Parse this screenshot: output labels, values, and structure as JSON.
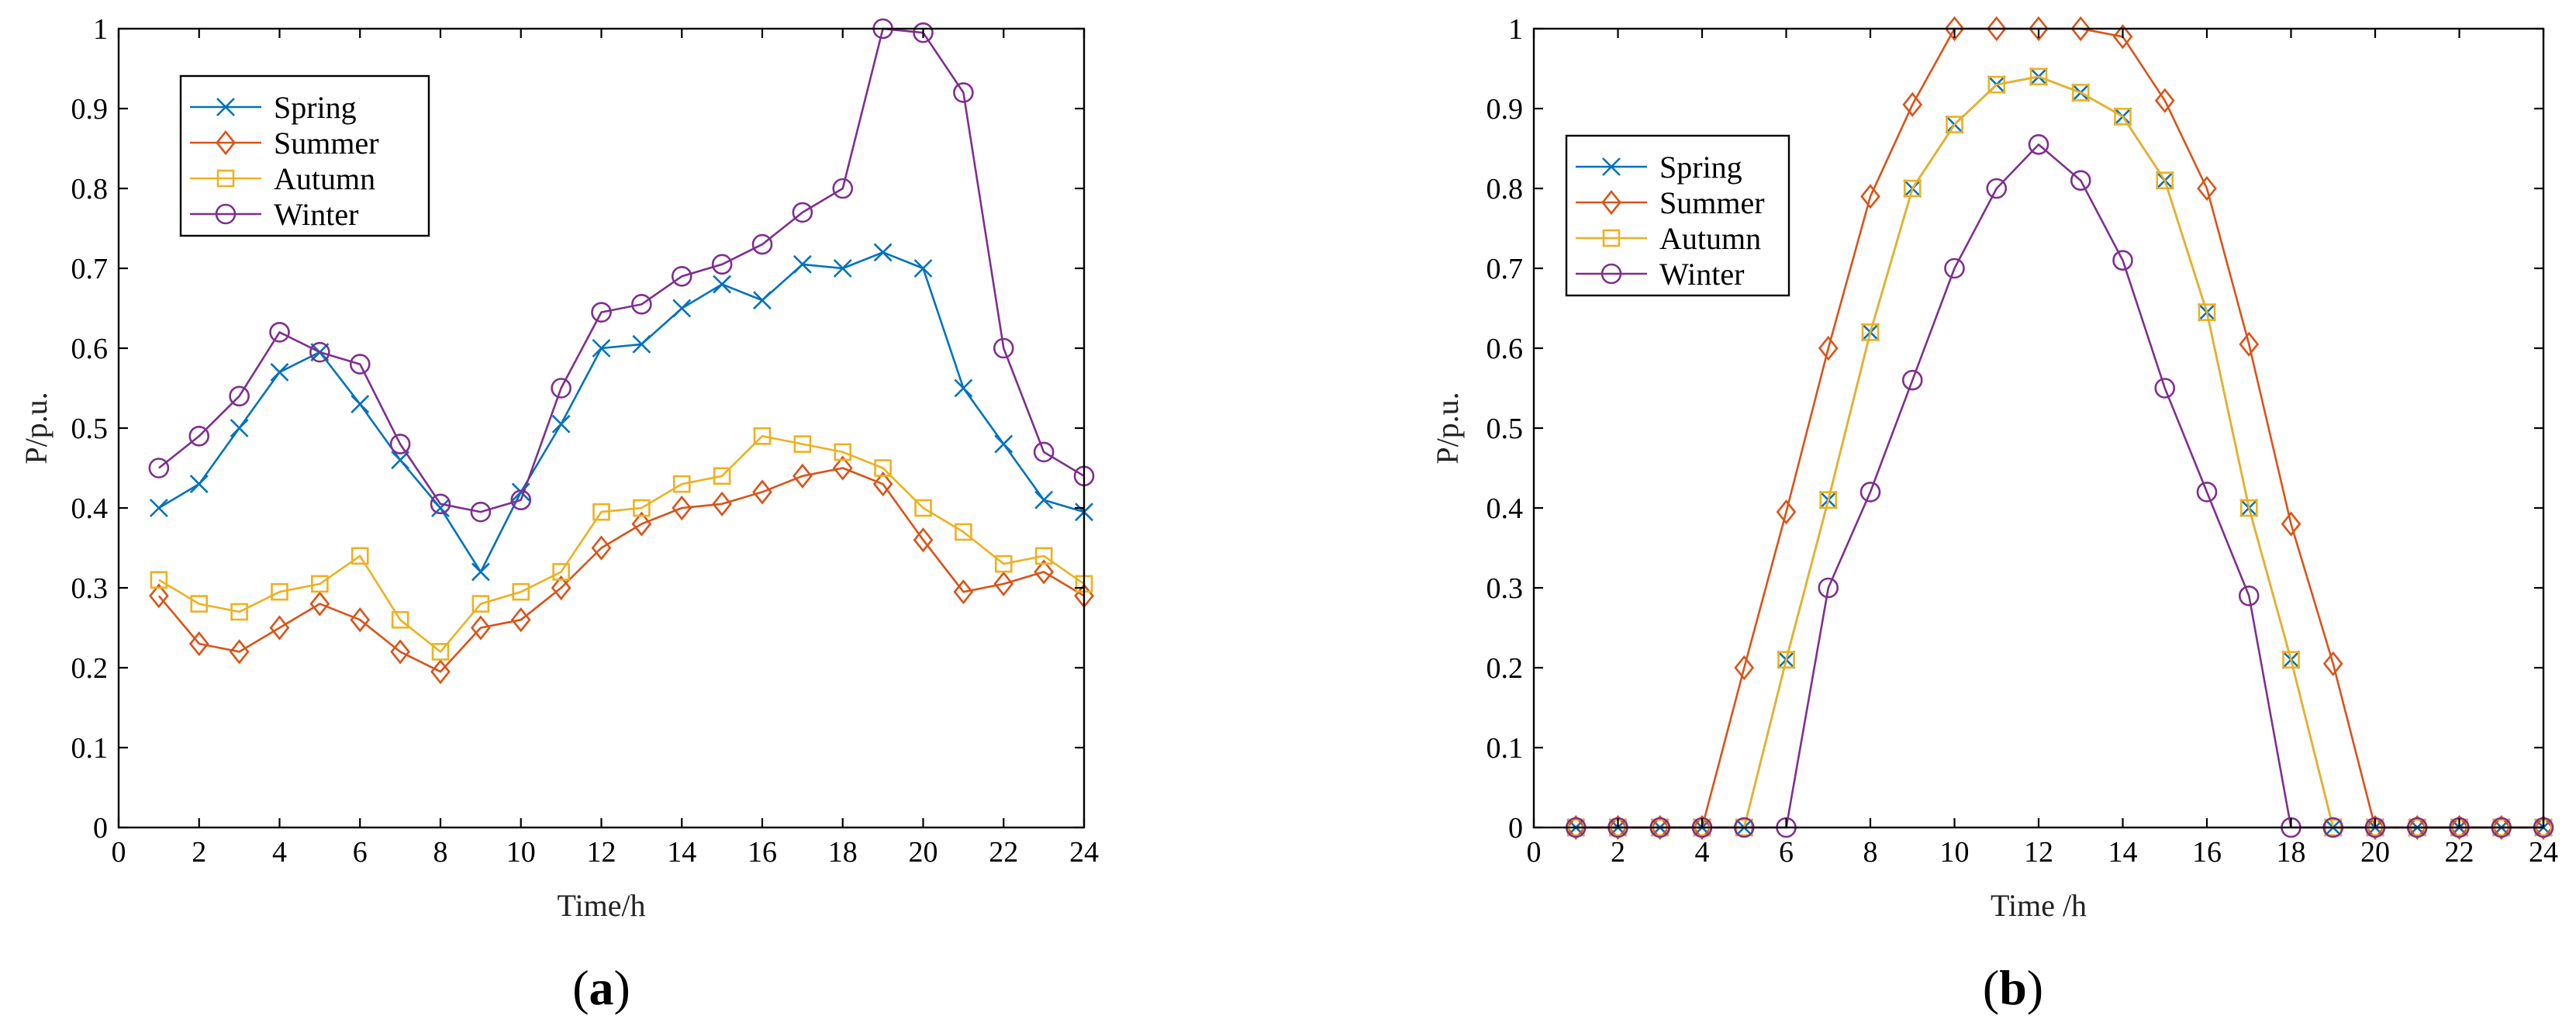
{
  "colors": {
    "Spring": "#0072BD",
    "Summer": "#D95319",
    "Autumn": "#EDB120",
    "Winter": "#7E2F8E"
  },
  "chart_data": [
    {
      "type": "line",
      "panel_label": "(a)",
      "panel_letter": "a",
      "xlabel": "Time/h",
      "ylabel": "P/p.u.",
      "xlim": [
        0,
        24
      ],
      "ylim": [
        0,
        1
      ],
      "xticks": [
        0,
        2,
        4,
        6,
        8,
        10,
        12,
        14,
        16,
        18,
        20,
        22,
        24
      ],
      "yticks": [
        0,
        0.1,
        0.2,
        0.3,
        0.4,
        0.5,
        0.6,
        0.7,
        0.8,
        0.9,
        1
      ],
      "grid": false,
      "legend_position": "top-left",
      "x": [
        1,
        2,
        3,
        4,
        5,
        6,
        7,
        8,
        9,
        10,
        11,
        12,
        13,
        14,
        15,
        16,
        17,
        18,
        19,
        20,
        21,
        22,
        23,
        24
      ],
      "series": [
        {
          "name": "Spring",
          "marker": "x",
          "values": [
            0.4,
            0.43,
            0.5,
            0.57,
            0.595,
            0.53,
            0.46,
            0.4,
            0.32,
            0.42,
            0.505,
            0.6,
            0.605,
            0.65,
            0.68,
            0.66,
            0.705,
            0.7,
            0.72,
            0.7,
            0.55,
            0.48,
            0.41,
            0.395
          ]
        },
        {
          "name": "Summer",
          "marker": "diamond",
          "values": [
            0.29,
            0.23,
            0.22,
            0.25,
            0.28,
            0.26,
            0.22,
            0.195,
            0.25,
            0.26,
            0.3,
            0.35,
            0.38,
            0.4,
            0.405,
            0.42,
            0.44,
            0.45,
            0.43,
            0.36,
            0.295,
            0.305,
            0.32,
            0.29
          ]
        },
        {
          "name": "Autumn",
          "marker": "square",
          "values": [
            0.31,
            0.28,
            0.27,
            0.295,
            0.305,
            0.34,
            0.26,
            0.22,
            0.28,
            0.295,
            0.32,
            0.395,
            0.4,
            0.43,
            0.44,
            0.49,
            0.48,
            0.47,
            0.45,
            0.4,
            0.37,
            0.33,
            0.34,
            0.305
          ]
        },
        {
          "name": "Winter",
          "marker": "circle",
          "values": [
            0.45,
            0.49,
            0.54,
            0.62,
            0.595,
            0.58,
            0.48,
            0.405,
            0.395,
            0.41,
            0.55,
            0.645,
            0.655,
            0.69,
            0.705,
            0.73,
            0.77,
            0.8,
            1.0,
            0.995,
            0.92,
            0.6,
            0.47,
            0.44
          ]
        }
      ]
    },
    {
      "type": "line",
      "panel_label": "(b)",
      "panel_letter": "b",
      "xlabel": "Time /h",
      "ylabel": "P/p.u.",
      "xlim": [
        0,
        24
      ],
      "ylim": [
        0,
        1
      ],
      "xticks": [
        0,
        2,
        4,
        6,
        8,
        10,
        12,
        14,
        16,
        18,
        20,
        22,
        24
      ],
      "yticks": [
        0,
        0.1,
        0.2,
        0.3,
        0.4,
        0.5,
        0.6,
        0.7,
        0.8,
        0.9,
        1
      ],
      "grid": false,
      "legend_position": "top-left",
      "x": [
        1,
        2,
        3,
        4,
        5,
        6,
        7,
        8,
        9,
        10,
        11,
        12,
        13,
        14,
        15,
        16,
        17,
        18,
        19,
        20,
        21,
        22,
        23,
        24
      ],
      "series": [
        {
          "name": "Spring",
          "marker": "x",
          "values": [
            0,
            0,
            0,
            0,
            0,
            0.21,
            0.41,
            0.62,
            0.8,
            0.88,
            0.93,
            0.94,
            0.92,
            0.89,
            0.81,
            0.645,
            0.4,
            0.21,
            0,
            0,
            0,
            0,
            0,
            0
          ]
        },
        {
          "name": "Summer",
          "marker": "diamond",
          "values": [
            0,
            0,
            0,
            0,
            0.2,
            0.395,
            0.6,
            0.79,
            0.905,
            1.0,
            1.0,
            1.0,
            1.0,
            0.99,
            0.91,
            0.8,
            0.605,
            0.38,
            0.205,
            0,
            0,
            0,
            0,
            0
          ]
        },
        {
          "name": "Autumn",
          "marker": "square",
          "values": [
            0,
            0,
            0,
            0,
            0,
            0.21,
            0.41,
            0.62,
            0.8,
            0.88,
            0.93,
            0.94,
            0.92,
            0.89,
            0.81,
            0.645,
            0.4,
            0.21,
            0,
            0,
            0,
            0,
            0,
            0
          ]
        },
        {
          "name": "Winter",
          "marker": "circle",
          "values": [
            0,
            0,
            0,
            0,
            0,
            0,
            0.3,
            0.42,
            0.56,
            0.7,
            0.8,
            0.855,
            0.81,
            0.71,
            0.55,
            0.42,
            0.29,
            0,
            0,
            0,
            0,
            0,
            0,
            0
          ]
        }
      ]
    }
  ]
}
